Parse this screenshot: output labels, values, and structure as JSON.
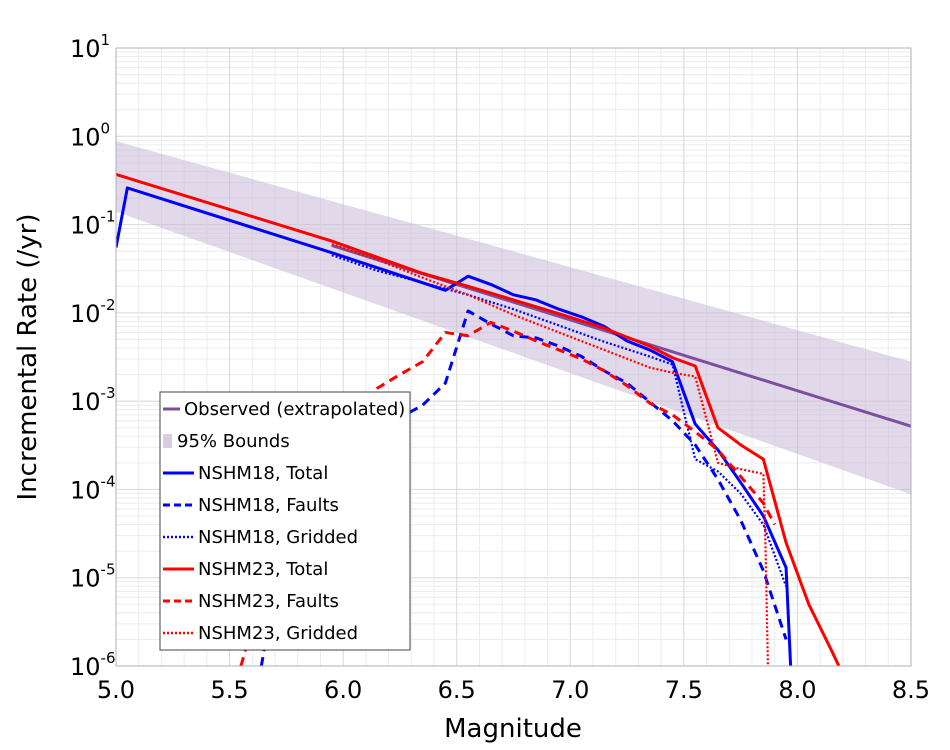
{
  "chart_data": {
    "type": "line",
    "title": "",
    "xlabel": "Magnitude",
    "ylabel": "Incremental Rate (/yr)",
    "xlim": [
      5.0,
      8.5
    ],
    "ylim_log10": [
      -6,
      1
    ],
    "yscale": "log",
    "grid": true,
    "legend_position": "bottom-left",
    "x_ticks": [
      "5.0",
      "5.5",
      "6.0",
      "6.5",
      "7.0",
      "7.5",
      "8.0",
      "8.5"
    ],
    "y_tick_exponents": [
      "1",
      "0",
      "-1",
      "-2",
      "-3",
      "-4",
      "-5",
      "-6"
    ],
    "y_tick_base": "10",
    "bounds": {
      "name": "95% Bounds",
      "color": "#c9b8d8",
      "x": [
        5.0,
        8.5
      ],
      "upper": [
        0.88,
        0.0028
      ],
      "lower": [
        0.14,
        8.8e-05
      ]
    },
    "series": [
      {
        "name": "Observed (extrapolated)",
        "color": "#7b4f9d",
        "style": "solid",
        "x": [
          5.95,
          8.5
        ],
        "y": [
          0.058,
          0.00052
        ]
      },
      {
        "name": "NSHM18, Total",
        "color": "#0000ff",
        "style": "solid",
        "x": [
          5.0,
          5.05,
          5.95,
          6.45,
          6.55,
          6.65,
          6.75,
          6.85,
          6.95,
          7.05,
          7.15,
          7.25,
          7.35,
          7.45,
          7.55,
          7.65,
          7.75,
          7.85,
          7.95,
          7.97
        ],
        "y": [
          0.055,
          0.26,
          0.048,
          0.018,
          0.026,
          0.021,
          0.016,
          0.014,
          0.011,
          0.009,
          0.007,
          0.0048,
          0.0038,
          0.0028,
          0.00055,
          0.00028,
          0.00012,
          5e-05,
          1.3e-05,
          1e-06
        ]
      },
      {
        "name": "NSHM18, Faults",
        "color": "#0000ff",
        "style": "dashed",
        "x": [
          5.64,
          5.72,
          5.82,
          5.92,
          6.05,
          6.15,
          6.25,
          6.35,
          6.45,
          6.55,
          6.65,
          6.75,
          6.85,
          6.95,
          7.05,
          7.15,
          7.25,
          7.35,
          7.45,
          7.55,
          7.65,
          7.75,
          7.85,
          7.95
        ],
        "y": [
          1e-06,
          1.6e-05,
          6e-05,
          0.00022,
          0.00035,
          0.0005,
          0.00065,
          0.0009,
          0.0016,
          0.0105,
          0.0075,
          0.0055,
          0.0052,
          0.0042,
          0.0032,
          0.0022,
          0.0016,
          0.00098,
          0.0006,
          0.00032,
          0.00013,
          4.5e-05,
          1.2e-05,
          2e-06
        ]
      },
      {
        "name": "NSHM18, Gridded",
        "color": "#0000ff",
        "style": "dotted",
        "x": [
          5.95,
          6.15,
          6.35,
          6.55,
          6.75,
          6.95,
          7.15,
          7.35,
          7.45,
          7.55,
          7.65,
          7.75,
          7.85,
          7.95
        ],
        "y": [
          0.045,
          0.03,
          0.022,
          0.016,
          0.011,
          0.0072,
          0.0047,
          0.0032,
          0.0026,
          0.00022,
          0.00016,
          9e-05,
          4e-05,
          8e-06
        ]
      },
      {
        "name": "NSHM23, Total",
        "color": "#ff0000",
        "style": "solid",
        "x": [
          5.0,
          5.95,
          6.35,
          6.55,
          6.75,
          6.95,
          7.15,
          7.35,
          7.45,
          7.55,
          7.65,
          7.75,
          7.85,
          7.95,
          8.05,
          8.15,
          8.2
        ],
        "y": [
          0.37,
          0.065,
          0.028,
          0.02,
          0.014,
          0.0098,
          0.0067,
          0.0042,
          0.0031,
          0.0025,
          0.0005,
          0.00032,
          0.00022,
          2.5e-05,
          5e-06,
          1.5e-06,
          8e-07
        ]
      },
      {
        "name": "NSHM23, Faults",
        "color": "#ff0000",
        "style": "dashed",
        "x": [
          5.55,
          5.65,
          5.75,
          5.85,
          5.95,
          6.05,
          6.15,
          6.25,
          6.35,
          6.45,
          6.55,
          6.65,
          6.75,
          6.85,
          6.95,
          7.05,
          7.15,
          7.25,
          7.35,
          7.45,
          7.55,
          7.65,
          7.75,
          7.85,
          7.9
        ],
        "y": [
          1e-06,
          8e-06,
          5e-05,
          0.0002,
          0.0004,
          0.00075,
          0.0014,
          0.002,
          0.0028,
          0.006,
          0.0055,
          0.0078,
          0.0062,
          0.0048,
          0.0038,
          0.003,
          0.0022,
          0.0015,
          0.00095,
          0.0007,
          0.00045,
          0.00028,
          0.00014,
          7e-05,
          4e-05
        ]
      },
      {
        "name": "NSHM23, Gridded",
        "color": "#ff0000",
        "style": "dotted",
        "x": [
          5.95,
          6.15,
          6.35,
          6.55,
          6.75,
          6.95,
          7.15,
          7.35,
          7.45,
          7.55,
          7.65,
          7.75,
          7.85,
          7.86,
          7.87
        ],
        "y": [
          0.06,
          0.04,
          0.025,
          0.016,
          0.0095,
          0.006,
          0.0038,
          0.0024,
          0.0021,
          0.0019,
          0.0002,
          0.00017,
          0.00015,
          2e-05,
          1e-06
        ]
      }
    ]
  }
}
